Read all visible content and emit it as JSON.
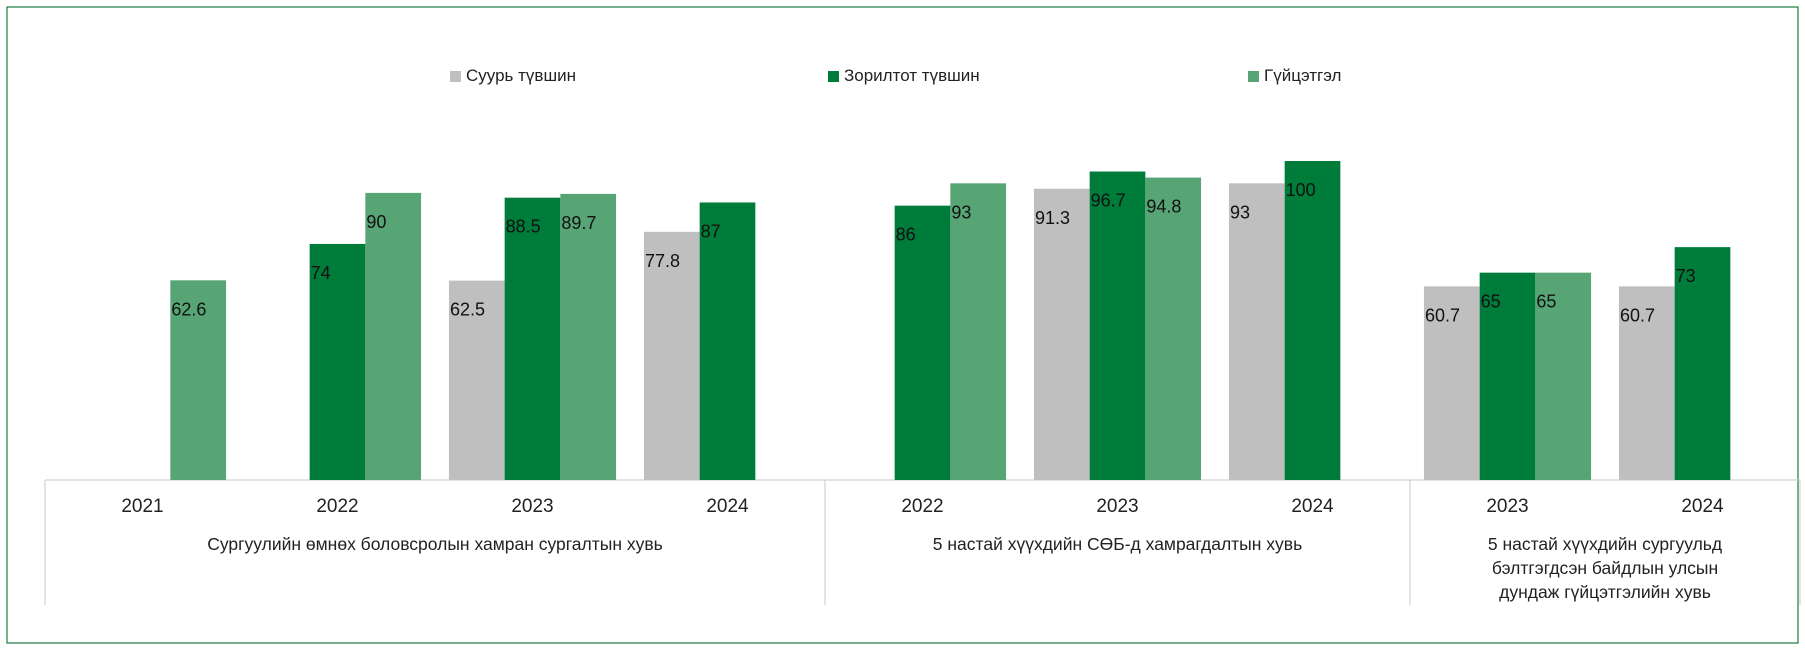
{
  "chart_data": {
    "type": "bar",
    "title": "",
    "xlabel": "",
    "ylabel": "",
    "ylim": [
      0,
      125
    ],
    "grid": false,
    "legend_position": "top",
    "series": [
      {
        "name": "Суурь түвшин",
        "color": "#bfbfbf"
      },
      {
        "name": "Зорилтот түвшин",
        "color": "#007c3a"
      },
      {
        "name": "Гүйцэтгэл",
        "color": "#57a474"
      }
    ],
    "groups": [
      {
        "label": "Сургуулийн өмнөх боловсролын хамран сургалтын хувь",
        "categories": [
          {
            "year": "2021",
            "values": [
              null,
              null,
              62.6
            ]
          },
          {
            "year": "2022",
            "values": [
              null,
              74,
              90
            ]
          },
          {
            "year": "2023",
            "values": [
              62.5,
              88.5,
              89.7
            ]
          },
          {
            "year": "2024",
            "values": [
              77.8,
              87,
              null
            ]
          }
        ]
      },
      {
        "label": "5 настай хүүхдийн СӨБ-д хамрагдалтын хувь",
        "categories": [
          {
            "year": "2022",
            "values": [
              null,
              86,
              93
            ]
          },
          {
            "year": "2023",
            "values": [
              91.3,
              96.7,
              94.8
            ]
          },
          {
            "year": "2024",
            "values": [
              93,
              100,
              null
            ]
          }
        ]
      },
      {
        "label_lines": [
          "5 настай хүүхдийн сургуульд",
          "бэлтгэгдсэн байдлын улсын",
          "дундаж гүйцэтгэлийн хувь"
        ],
        "categories": [
          {
            "year": "2023",
            "values": [
              60.7,
              65,
              65
            ]
          },
          {
            "year": "2024",
            "values": [
              60.7,
              73,
              null
            ]
          }
        ]
      }
    ]
  }
}
